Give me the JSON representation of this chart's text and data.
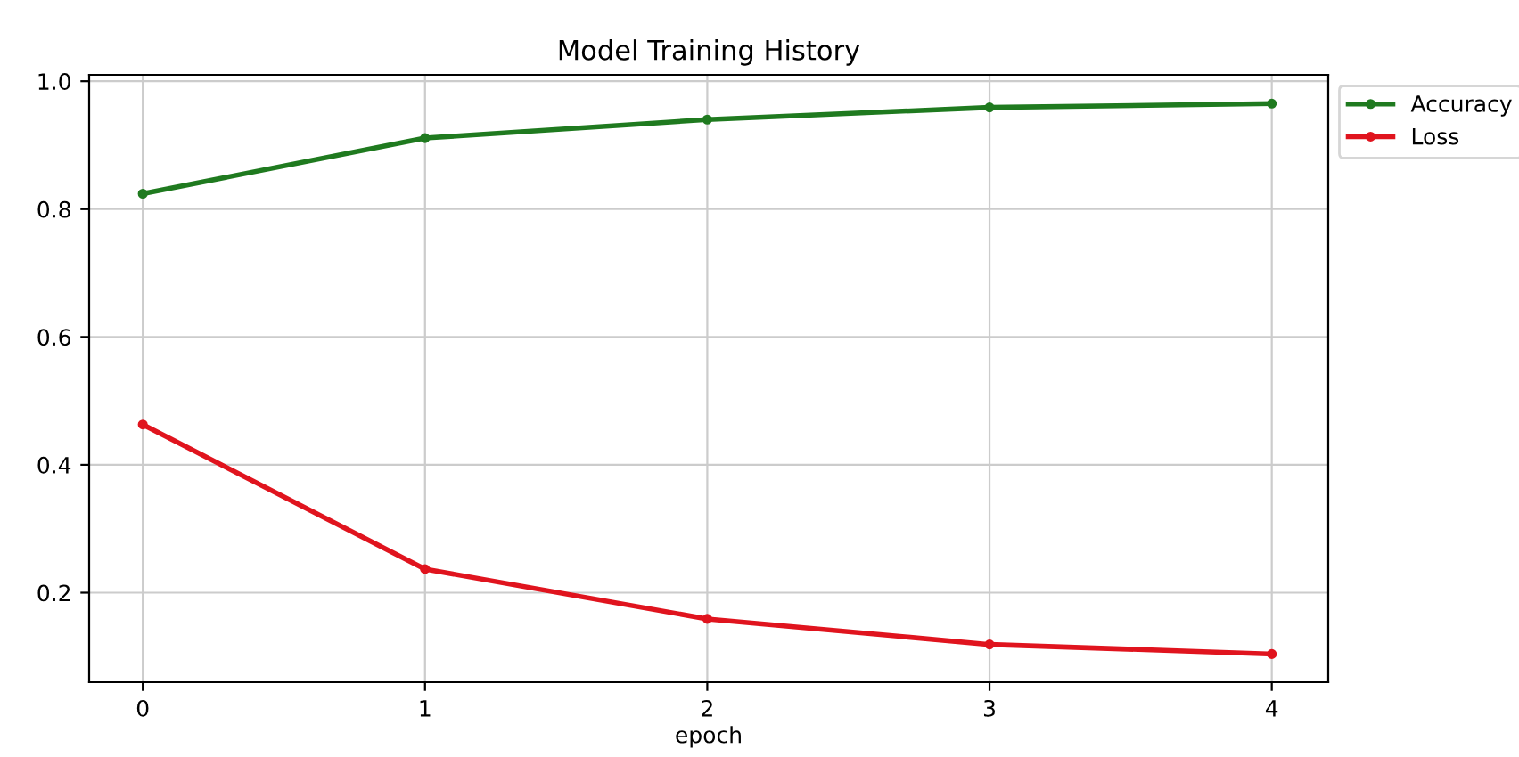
{
  "chart_data": {
    "type": "line",
    "title": "Model Training History",
    "xlabel": "epoch",
    "x": [
      0,
      1,
      2,
      3,
      4
    ],
    "series": [
      {
        "name": "Accuracy",
        "color": "#1f7a1f",
        "values": [
          0.824,
          0.911,
          0.94,
          0.959,
          0.965
        ]
      },
      {
        "name": "Loss",
        "color": "#e0141e",
        "values": [
          0.463,
          0.237,
          0.159,
          0.119,
          0.104
        ]
      }
    ],
    "xlim": [
      -0.19,
      4.2
    ],
    "xticks": [
      0,
      1,
      2,
      3,
      4
    ],
    "ylim": [
      0.06,
      1.01
    ],
    "yticks": [
      0.2,
      0.4,
      0.6,
      0.8,
      {
        "value": 1,
        "label": "1.0"
      }
    ],
    "grid": true,
    "legend": "top right",
    "marker": "circle",
    "line_style": "solid"
  }
}
